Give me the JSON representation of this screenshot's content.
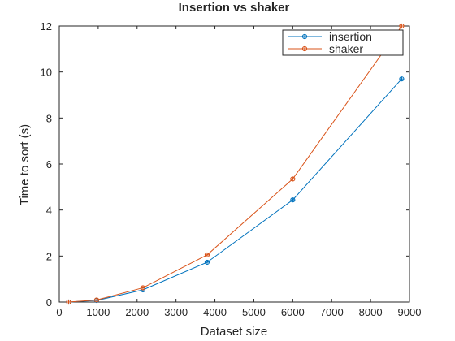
{
  "chart_data": {
    "type": "line",
    "title": "Insertion vs shaker",
    "xlabel": "Dataset size",
    "ylabel": "Time to sort (s)",
    "xlim": [
      0,
      9000
    ],
    "ylim": [
      0,
      12
    ],
    "xticks": [
      0,
      1000,
      2000,
      3000,
      4000,
      5000,
      6000,
      7000,
      8000,
      9000
    ],
    "yticks": [
      0,
      2,
      4,
      6,
      8,
      10,
      12
    ],
    "grid": false,
    "legend_location": "top-right",
    "series": [
      {
        "name": "insertion",
        "color": "#0072bd",
        "marker": "circle-plus",
        "x": [
          240,
          960,
          2150,
          3800,
          6000,
          8800
        ],
        "y": [
          0.0,
          0.07,
          0.53,
          1.73,
          4.44,
          9.7
        ]
      },
      {
        "name": "shaker",
        "color": "#d95319",
        "marker": "circle-plus",
        "x": [
          240,
          960,
          2150,
          3800,
          6000,
          8800
        ],
        "y": [
          0.0,
          0.09,
          0.62,
          2.05,
          5.35,
          12.0
        ]
      }
    ]
  }
}
